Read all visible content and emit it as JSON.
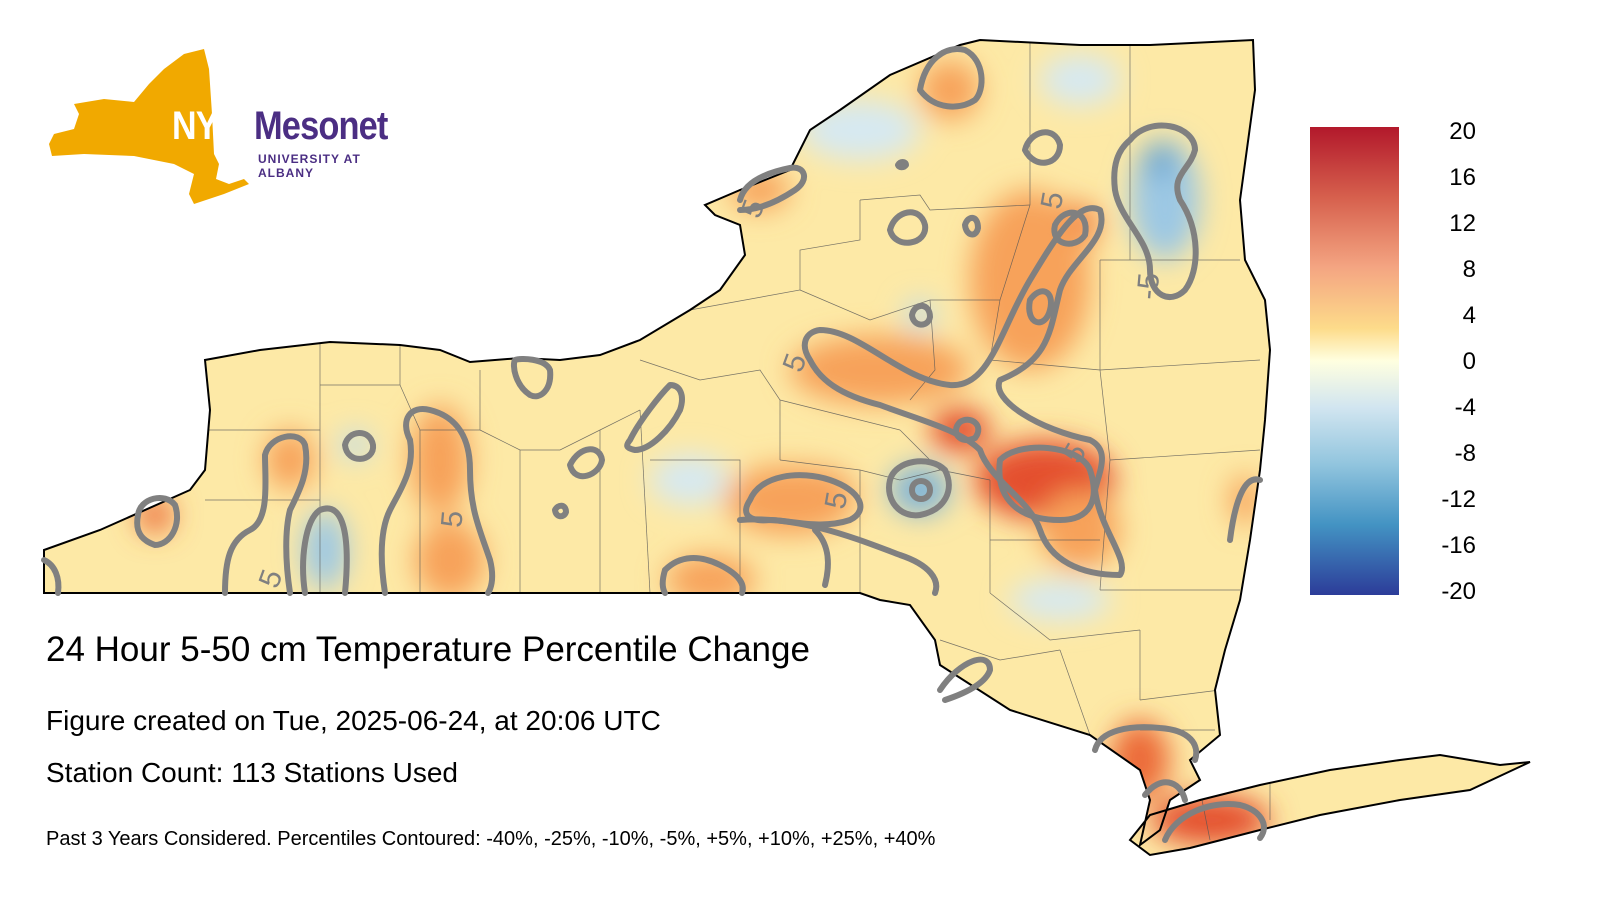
{
  "logo": {
    "nys": "NYS",
    "mesonet": "Mesonet",
    "subtitle": "UNIVERSITY AT ALBANY"
  },
  "title": "24 Hour 5-50 cm Temperature Percentile Change",
  "created": "Figure created on Tue, 2025-06-24, at 20:06 UTC",
  "stations": "Station Count: 113 Stations Used",
  "footnote": "Past 3 Years Considered. Percentiles Contoured: -40%, -25%, -10%, -5%, +5%, +10%, +25%, +40%",
  "legend": {
    "ticks": [
      "20",
      "16",
      "12",
      "8",
      "4",
      "0",
      "-4",
      "-8",
      "-12",
      "-16",
      "-20"
    ],
    "colors": {
      "max": "#b2182b",
      "high": "#f4a582",
      "zero": "#ffffe0",
      "low": "#92c5de",
      "min": "#2c3c99"
    }
  },
  "map": {
    "contour_labels": [
      "5",
      "5",
      "-5",
      "5",
      "5",
      "5",
      "5",
      "5"
    ],
    "colors": {
      "land": "#fde9a6",
      "warm": "#f7a25a",
      "hot": "#e4502e",
      "cool": "#bcdcee",
      "cold": "#7fb4d8",
      "contour": "#808080"
    }
  }
}
